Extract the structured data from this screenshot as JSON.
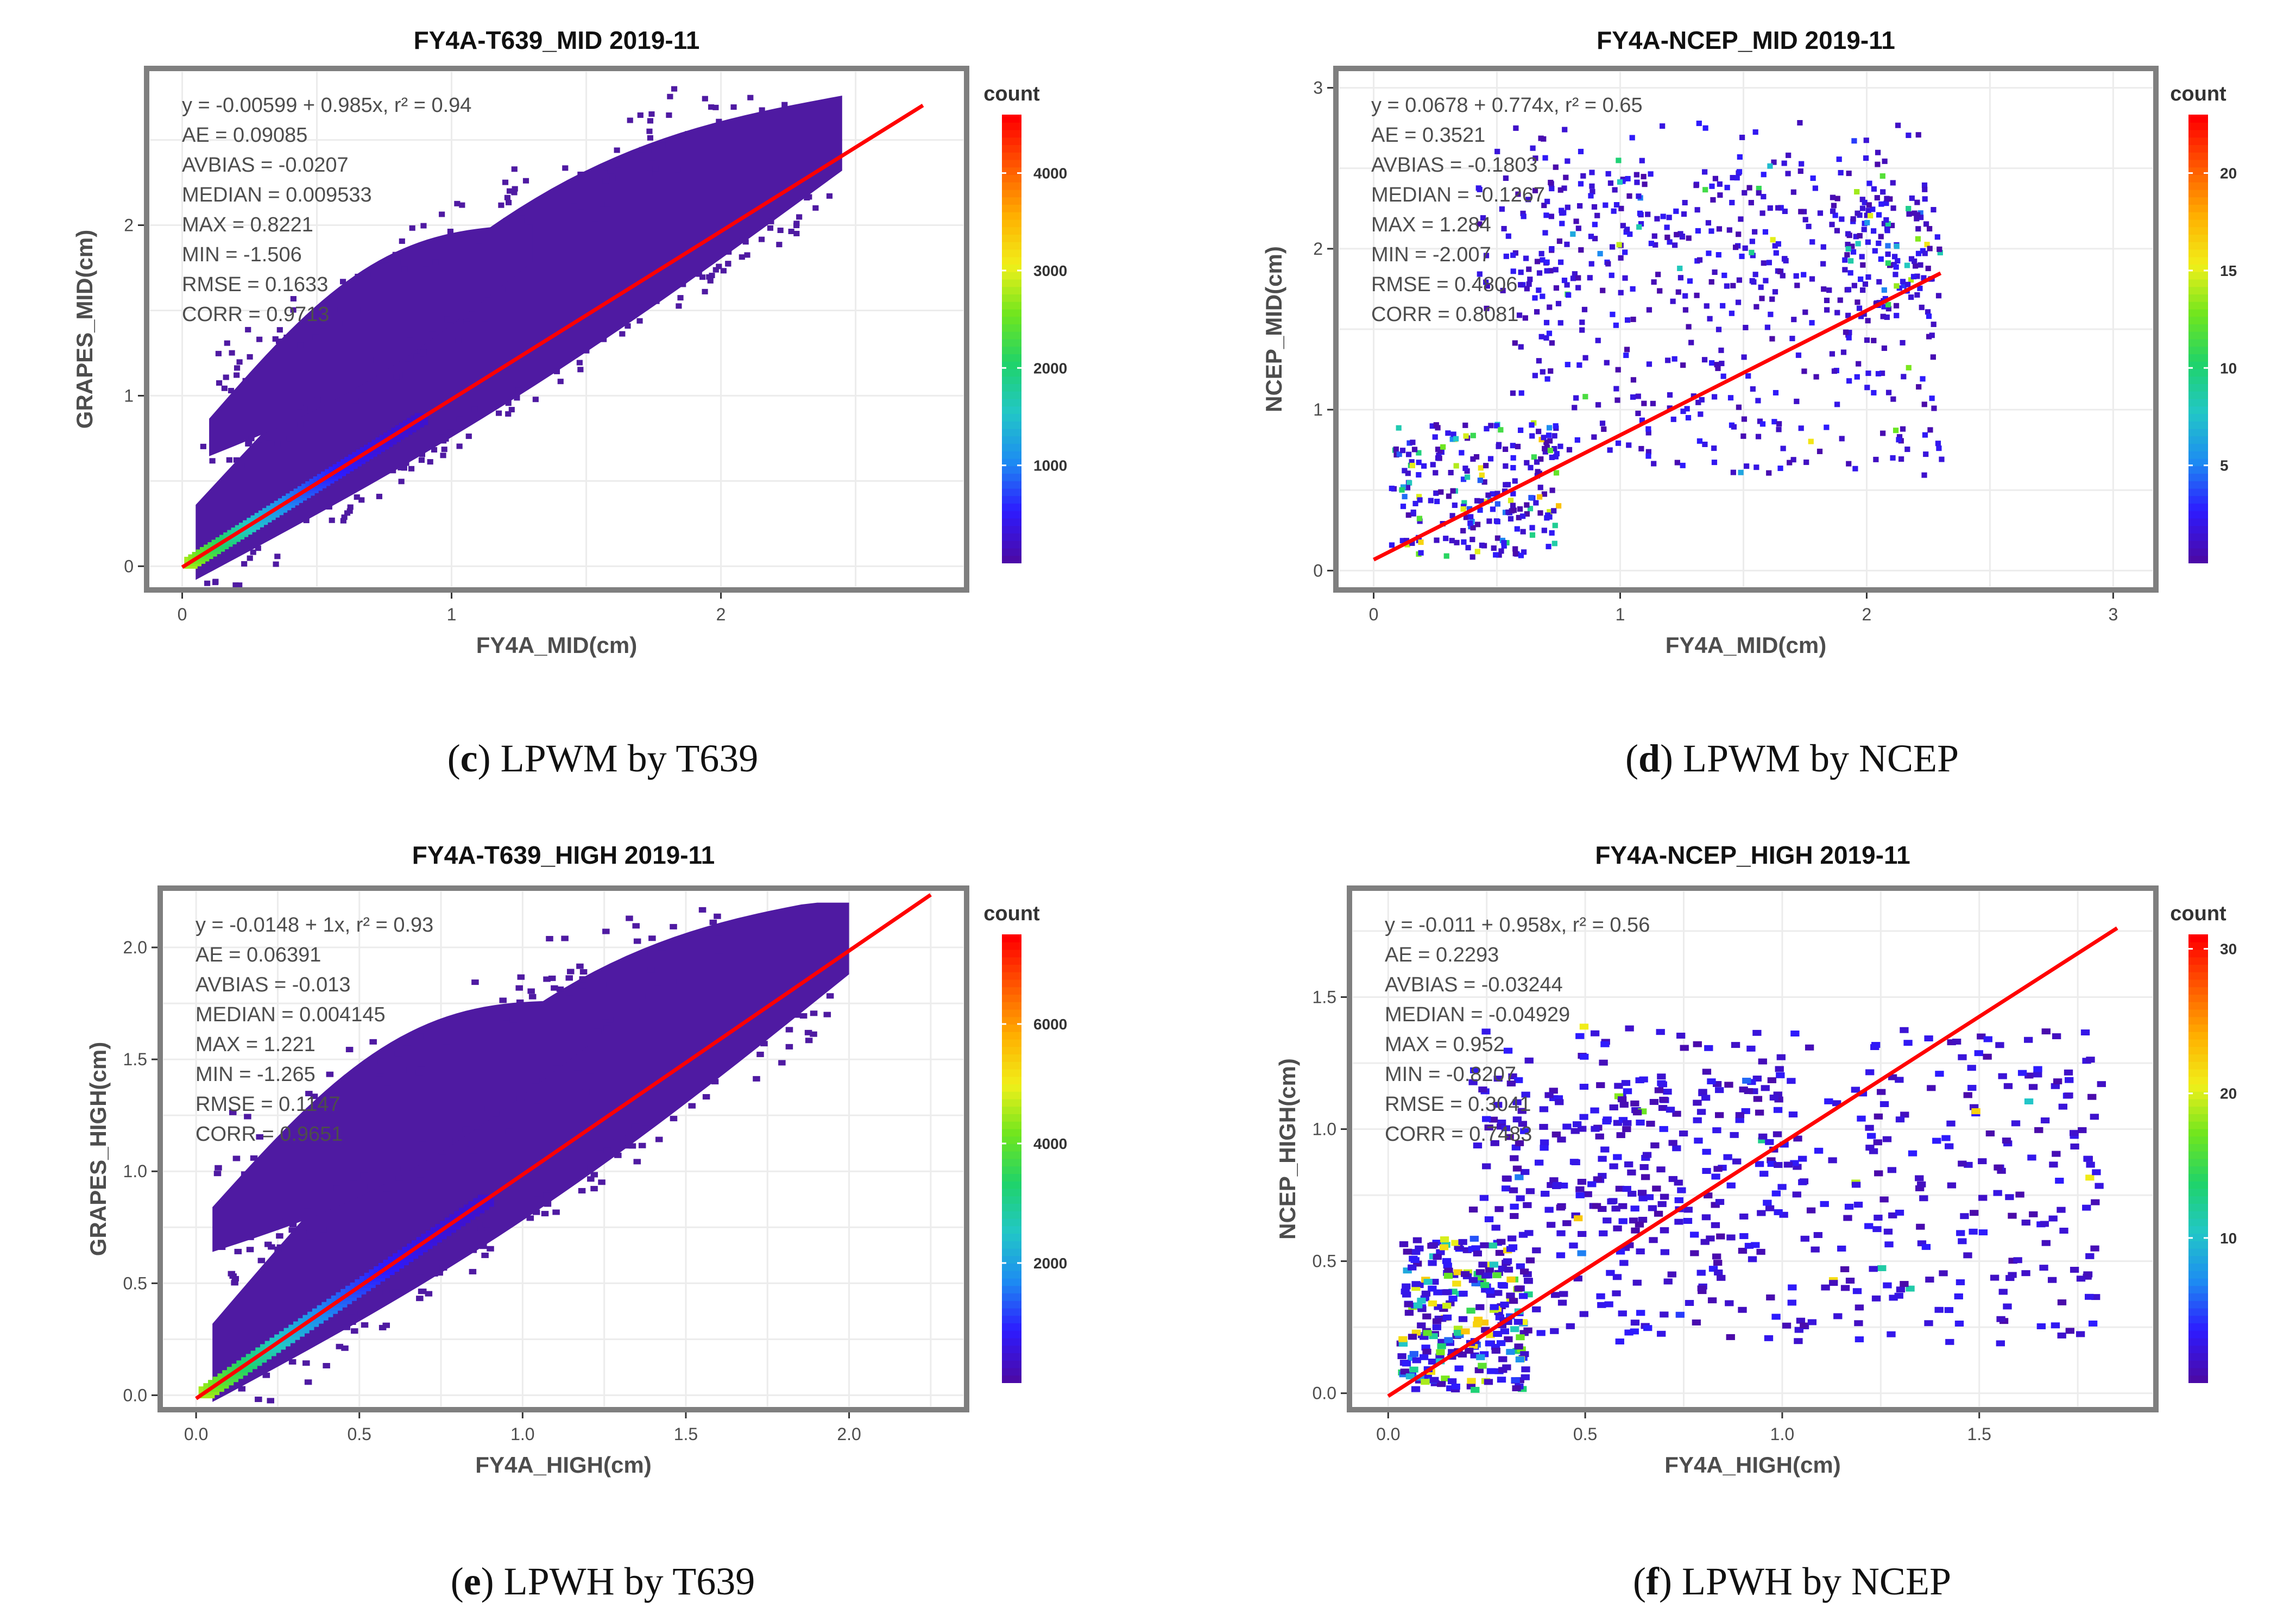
{
  "colors": {
    "cmap": [
      "#4b0aa8",
      "#2d1bff",
      "#1d8cf2",
      "#22c7c7",
      "#1fd36a",
      "#6fe61e",
      "#f0f01a",
      "#ffb000",
      "#ff5a00",
      "#ff0000"
    ],
    "fit_line": "#ff0000",
    "frame": "#7f7f7f",
    "grid": "#ececec",
    "text": "#4d4d4d",
    "dense": "#4f1aa2"
  },
  "chart_data": [
    {
      "id": "c",
      "type": "heatmap",
      "title": "FY4A-T639_MID 2019-11",
      "xlabel": "FY4A_MID(cm)",
      "ylabel": "GRAPES_MID(cm)",
      "xlim": [
        -0.12,
        2.9
      ],
      "ylim": [
        -0.12,
        2.9
      ],
      "xticks": [
        0,
        1,
        2
      ],
      "yticks": [
        0,
        1,
        2
      ],
      "fit": {
        "intercept": -0.00599,
        "slope": 0.985,
        "x_range": [
          0.0,
          2.75
        ]
      },
      "stats": [
        "y = -0.00599 + 0.985x,  r² = 0.94",
        "AE = 0.09085",
        "AVBIAS = -0.0207",
        "MEDIAN = 0.009533",
        "MAX = 0.8221",
        "MIN = -1.506",
        "RMSE = 0.1633",
        "CORR = 0.9713"
      ],
      "legend": {
        "title": "count",
        "ticks": [
          1000,
          2000,
          3000,
          4000
        ],
        "max": 4600
      },
      "caption": {
        "letter": "c",
        "text": ") LPWM by T639"
      },
      "density": "dense",
      "scatter_regions": [
        {
          "x": [
            0.05,
            2.45
          ],
          "a": -0.05,
          "b": 1.0,
          "lo": 0.08,
          "hi": 0.9,
          "n": 240
        },
        {
          "x": [
            0.1,
            1.3
          ],
          "a": 0.55,
          "b": 0.95,
          "lo": 0.0,
          "hi": 0.55,
          "n": 100
        }
      ]
    },
    {
      "id": "d",
      "type": "heatmap",
      "title": "FY4A-NCEP_MID 2019-11",
      "xlabel": "FY4A_MID(cm)",
      "ylabel": "NCEP_MID(cm)",
      "xlim": [
        -0.14,
        3.16
      ],
      "ylim": [
        -0.1,
        3.1
      ],
      "xticks": [
        0,
        1,
        2,
        3
      ],
      "yticks": [
        0,
        1,
        2,
        3
      ],
      "fit": {
        "intercept": 0.0678,
        "slope": 0.774,
        "x_range": [
          0.0,
          2.3
        ]
      },
      "stats": [
        "y = 0.0678 + 0.774x,  r² = 0.65",
        "AE = 0.3521",
        "AVBIAS = -0.1803",
        "MEDIAN = -0.1267",
        "MAX = 1.284",
        "MIN = -2.007",
        "RMSE = 0.4806",
        "CORR = 0.8081"
      ],
      "legend": {
        "title": "count",
        "ticks": [
          5,
          10,
          15,
          20
        ],
        "max": 23
      },
      "caption": {
        "letter": "d",
        "text": ") LPWM by NCEP"
      },
      "density": "sparse",
      "cells": [
        {
          "x": [
            0.05,
            0.75
          ],
          "y": [
            0.1,
            0.95
          ],
          "n": 220,
          "tail": 0.3,
          "maxv": 23
        },
        {
          "x": [
            0.55,
            2.3
          ],
          "y": [
            0.6,
            2.5
          ],
          "n": 420,
          "tail": 0.05,
          "maxv": 23
        },
        {
          "x": [
            0.4,
            2.2
          ],
          "y": [
            1.6,
            2.8
          ],
          "n": 180,
          "tail": 0.03,
          "maxv": 23
        },
        {
          "x": [
            1.9,
            2.3
          ],
          "y": [
            1.6,
            2.3
          ],
          "n": 60,
          "tail": 0.25,
          "maxv": 23
        }
      ]
    },
    {
      "id": "e",
      "type": "heatmap",
      "title": "FY4A-T639_HIGH 2019-11",
      "xlabel": "FY4A_HIGH(cm)",
      "ylabel": "GRAPES_HIGH(cm)",
      "xlim": [
        -0.1,
        2.35
      ],
      "ylim": [
        -0.05,
        2.25
      ],
      "xticks": [
        0.0,
        0.5,
        1.0,
        1.5,
        2.0
      ],
      "yticks": [
        0.0,
        0.5,
        1.0,
        1.5,
        2.0
      ],
      "fit": {
        "intercept": -0.0148,
        "slope": 1.0,
        "x_range": [
          0.0,
          2.25
        ]
      },
      "stats": [
        "y = -0.0148 + 1x,  r² = 0.93",
        "AE = 0.06391",
        "AVBIAS = -0.013",
        "MEDIAN = 0.004145",
        "MAX = 1.221",
        "MIN = -1.265",
        "RMSE = 0.1147",
        "CORR = 0.9651"
      ],
      "legend": {
        "title": "count",
        "ticks": [
          2000,
          4000,
          6000
        ],
        "max": 7500
      },
      "caption": {
        "letter": "e",
        "text": ") LPWH by T639"
      },
      "density": "dense",
      "scatter_regions": [
        {
          "x": [
            0.05,
            2.0
          ],
          "a": -0.03,
          "b": 0.98,
          "lo": 0.05,
          "hi": 0.75,
          "n": 240
        },
        {
          "x": [
            0.05,
            1.2
          ],
          "a": 0.6,
          "b": 0.8,
          "lo": 0.0,
          "hi": 0.5,
          "n": 90
        }
      ]
    },
    {
      "id": "f",
      "type": "heatmap",
      "title": "FY4A-NCEP_HIGH 2019-11",
      "xlabel": "FY4A_HIGH(cm)",
      "ylabel": "NCEP_HIGH(cm)",
      "xlim": [
        -0.09,
        1.94
      ],
      "ylim": [
        -0.05,
        1.9
      ],
      "xticks": [
        0.0,
        0.5,
        1.0,
        1.5
      ],
      "yticks": [
        0.0,
        0.5,
        1.0,
        1.5
      ],
      "fit": {
        "intercept": -0.011,
        "slope": 0.958,
        "x_range": [
          0.0,
          1.85
        ]
      },
      "stats": [
        "y = -0.011 + 0.958x,  r² = 0.56",
        "AE = 0.2293",
        "AVBIAS = -0.03244",
        "MEDIAN = -0.04929",
        "MAX = 0.952",
        "MIN = -0.8207",
        "RMSE = 0.3041",
        "CORR = 0.7483"
      ],
      "legend": {
        "title": "count",
        "ticks": [
          10,
          20,
          30
        ],
        "max": 31
      },
      "caption": {
        "letter": "f",
        "text": ") LPWH by NCEP"
      },
      "density": "sparse",
      "cells": [
        {
          "x": [
            0.02,
            0.35
          ],
          "y": [
            0.02,
            0.6
          ],
          "n": 260,
          "tail": 0.35,
          "maxv": 31
        },
        {
          "x": [
            0.2,
            1.8
          ],
          "y": [
            0.2,
            1.4
          ],
          "n": 460,
          "tail": 0.04,
          "maxv": 31
        },
        {
          "x": [
            0.3,
            1.0
          ],
          "y": [
            0.6,
            1.2
          ],
          "n": 120,
          "tail": 0.02,
          "maxv": 31
        }
      ]
    }
  ]
}
